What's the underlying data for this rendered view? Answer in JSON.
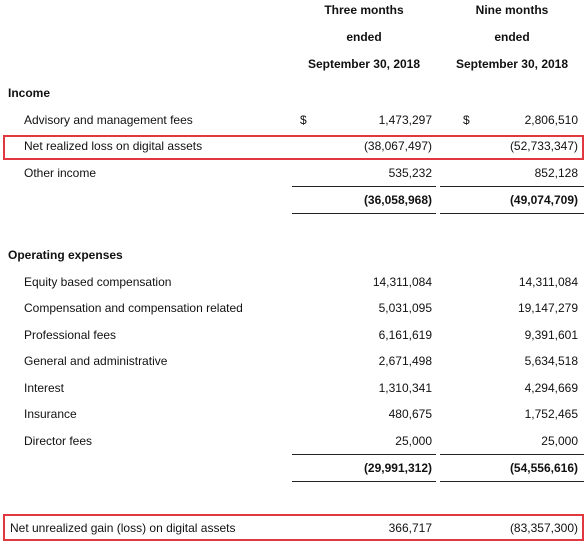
{
  "header": {
    "columns": [
      [
        "Three months",
        "ended",
        "September 30, 2018"
      ],
      [
        "Nine months",
        "ended",
        "September 30, 2018"
      ]
    ]
  },
  "income": {
    "title": "Income",
    "rows": [
      {
        "label": "Advisory and management fees",
        "currency": [
          "$",
          "$"
        ],
        "values": [
          "1,473,297",
          "2,806,510"
        ]
      },
      {
        "label": "Net realized loss on digital assets",
        "values": [
          "(38,067,497)",
          "(52,733,347)"
        ]
      },
      {
        "label": "Other income",
        "values": [
          "535,232",
          "852,128"
        ]
      }
    ],
    "total": [
      "(36,058,968)",
      "(49,074,709)"
    ]
  },
  "operating_expenses": {
    "title": "Operating expenses",
    "rows": [
      {
        "label": "Equity based compensation",
        "values": [
          "14,311,084",
          "14,311,084"
        ]
      },
      {
        "label": "Compensation and compensation related",
        "values": [
          "5,031,095",
          "19,147,279"
        ]
      },
      {
        "label": "Professional fees",
        "values": [
          "6,161,619",
          "9,391,601"
        ]
      },
      {
        "label": "General and administrative",
        "values": [
          "2,671,498",
          "5,634,518"
        ]
      },
      {
        "label": "Interest",
        "values": [
          "1,310,341",
          "4,294,669"
        ]
      },
      {
        "label": "Insurance",
        "values": [
          "480,675",
          "1,752,465"
        ]
      },
      {
        "label": "Director fees",
        "values": [
          "25,000",
          "25,000"
        ]
      }
    ],
    "total": [
      "(29,991,312)",
      "(54,556,616)"
    ]
  },
  "net_unrealized": {
    "label": "Net unrealized gain (loss) on digital assets",
    "values": [
      "366,717",
      "(83,357,300)"
    ]
  }
}
